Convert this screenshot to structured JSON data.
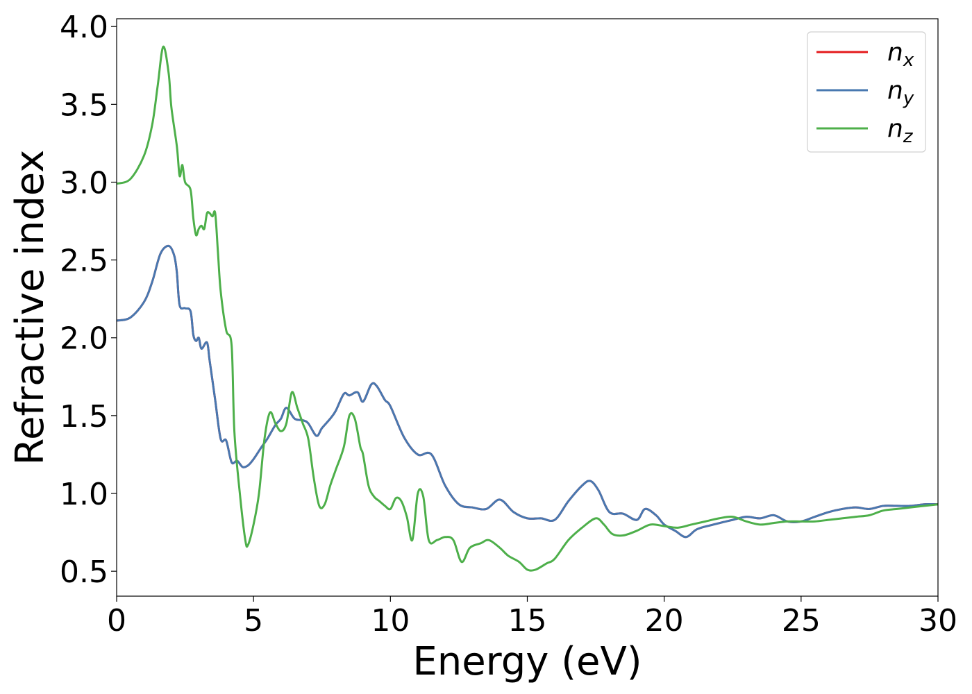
{
  "chart_data": {
    "type": "line",
    "title": "",
    "xlabel": "Energy (eV)",
    "ylabel": "Refractive index",
    "xlim": [
      0,
      30
    ],
    "ylim": [
      0.34,
      4.05
    ],
    "xticks": [
      0,
      5,
      10,
      15,
      20,
      25,
      30
    ],
    "xtick_labels": [
      "0",
      "5",
      "10",
      "15",
      "20",
      "25",
      "30"
    ],
    "yticks": [
      0.5,
      1.0,
      1.5,
      2.0,
      2.5,
      3.0,
      3.5,
      4.0
    ],
    "ytick_labels": [
      "0.5",
      "1.0",
      "1.5",
      "2.0",
      "2.5",
      "3.0",
      "3.5",
      "4.0"
    ],
    "grid": false,
    "legend_position": "top-right",
    "series": [
      {
        "name": "n",
        "subscript": "x",
        "color": "#e41a1c",
        "x": [
          0,
          0.5,
          1.0,
          1.3,
          1.6,
          1.9,
          2.1,
          2.2,
          2.3,
          2.5,
          2.7,
          2.8,
          2.9,
          3.0,
          3.1,
          3.3,
          3.4,
          3.6,
          3.8,
          4.0,
          4.2,
          4.4,
          4.6,
          4.8,
          5.0,
          5.3,
          5.5,
          5.8,
          6.0,
          6.2,
          6.5,
          6.8,
          7.0,
          7.3,
          7.5,
          7.8,
          8.0,
          8.3,
          8.5,
          8.8,
          9.0,
          9.3,
          9.5,
          9.8,
          10.0,
          10.5,
          11.0,
          11.5,
          12.0,
          12.5,
          13.0,
          13.5,
          14.0,
          14.5,
          15.0,
          15.5,
          16.0,
          16.5,
          17.0,
          17.3,
          17.6,
          18.0,
          18.5,
          19.0,
          19.3,
          19.7,
          20.0,
          20.4,
          20.8,
          21.2,
          21.8,
          22.5,
          23.0,
          23.5,
          24.0,
          24.5,
          25.0,
          25.5,
          26.0,
          26.5,
          27.0,
          27.5,
          28.0,
          28.5,
          29.0,
          29.5,
          30.0
        ],
        "values": [
          2.11,
          2.13,
          2.23,
          2.36,
          2.54,
          2.59,
          2.53,
          2.42,
          2.21,
          2.19,
          2.17,
          2.02,
          1.98,
          2.0,
          1.93,
          1.97,
          1.85,
          1.6,
          1.35,
          1.34,
          1.2,
          1.21,
          1.17,
          1.18,
          1.22,
          1.3,
          1.35,
          1.44,
          1.48,
          1.55,
          1.48,
          1.47,
          1.45,
          1.37,
          1.42,
          1.48,
          1.53,
          1.64,
          1.63,
          1.65,
          1.59,
          1.7,
          1.69,
          1.6,
          1.56,
          1.36,
          1.25,
          1.25,
          1.05,
          0.93,
          0.91,
          0.9,
          0.96,
          0.88,
          0.84,
          0.84,
          0.83,
          0.95,
          1.05,
          1.08,
          1.02,
          0.88,
          0.87,
          0.83,
          0.9,
          0.86,
          0.8,
          0.76,
          0.72,
          0.77,
          0.8,
          0.83,
          0.85,
          0.84,
          0.86,
          0.82,
          0.82,
          0.85,
          0.88,
          0.9,
          0.91,
          0.9,
          0.92,
          0.92,
          0.92,
          0.93,
          0.93
        ]
      },
      {
        "name": "n",
        "subscript": "y",
        "color": "#4878b0",
        "x": [
          0,
          0.5,
          1.0,
          1.3,
          1.6,
          1.9,
          2.1,
          2.2,
          2.3,
          2.5,
          2.7,
          2.8,
          2.9,
          3.0,
          3.1,
          3.3,
          3.4,
          3.6,
          3.8,
          4.0,
          4.2,
          4.4,
          4.6,
          4.8,
          5.0,
          5.3,
          5.5,
          5.8,
          6.0,
          6.2,
          6.5,
          6.8,
          7.0,
          7.3,
          7.5,
          7.8,
          8.0,
          8.3,
          8.5,
          8.8,
          9.0,
          9.3,
          9.5,
          9.8,
          10.0,
          10.5,
          11.0,
          11.5,
          12.0,
          12.5,
          13.0,
          13.5,
          14.0,
          14.5,
          15.0,
          15.5,
          16.0,
          16.5,
          17.0,
          17.3,
          17.6,
          18.0,
          18.5,
          19.0,
          19.3,
          19.7,
          20.0,
          20.4,
          20.8,
          21.2,
          21.8,
          22.5,
          23.0,
          23.5,
          24.0,
          24.5,
          25.0,
          25.5,
          26.0,
          26.5,
          27.0,
          27.5,
          28.0,
          28.5,
          29.0,
          29.5,
          30.0
        ],
        "values": [
          2.11,
          2.13,
          2.23,
          2.36,
          2.54,
          2.59,
          2.53,
          2.42,
          2.21,
          2.19,
          2.17,
          2.02,
          1.98,
          2.0,
          1.93,
          1.97,
          1.85,
          1.6,
          1.35,
          1.34,
          1.2,
          1.21,
          1.17,
          1.18,
          1.22,
          1.3,
          1.35,
          1.44,
          1.48,
          1.55,
          1.48,
          1.47,
          1.45,
          1.37,
          1.42,
          1.48,
          1.53,
          1.64,
          1.63,
          1.65,
          1.59,
          1.7,
          1.69,
          1.6,
          1.56,
          1.36,
          1.25,
          1.25,
          1.05,
          0.93,
          0.91,
          0.9,
          0.96,
          0.88,
          0.84,
          0.84,
          0.83,
          0.95,
          1.05,
          1.08,
          1.02,
          0.88,
          0.87,
          0.83,
          0.9,
          0.86,
          0.8,
          0.76,
          0.72,
          0.77,
          0.8,
          0.83,
          0.85,
          0.84,
          0.86,
          0.82,
          0.82,
          0.85,
          0.88,
          0.9,
          0.91,
          0.9,
          0.92,
          0.92,
          0.92,
          0.93,
          0.93
        ]
      },
      {
        "name": "n",
        "subscript": "z",
        "color": "#4daf4a",
        "x": [
          0,
          0.5,
          1.0,
          1.3,
          1.5,
          1.7,
          1.9,
          2.0,
          2.2,
          2.3,
          2.4,
          2.5,
          2.7,
          2.8,
          2.9,
          3.0,
          3.1,
          3.2,
          3.3,
          3.4,
          3.5,
          3.6,
          3.7,
          3.8,
          4.0,
          4.2,
          4.3,
          4.5,
          4.7,
          4.8,
          5.0,
          5.2,
          5.4,
          5.6,
          5.8,
          6.0,
          6.2,
          6.4,
          6.6,
          6.8,
          7.0,
          7.2,
          7.4,
          7.6,
          7.8,
          8.0,
          8.3,
          8.5,
          8.7,
          8.9,
          9.0,
          9.2,
          9.4,
          9.6,
          9.8,
          10.0,
          10.2,
          10.4,
          10.6,
          10.8,
          11.0,
          11.2,
          11.4,
          11.7,
          12.0,
          12.3,
          12.6,
          12.9,
          13.3,
          13.6,
          14.0,
          14.3,
          14.7,
          15.0,
          15.3,
          15.7,
          16.0,
          16.5,
          17.0,
          17.5,
          17.8,
          18.1,
          18.5,
          19.0,
          19.5,
          20.0,
          20.5,
          21.0,
          21.5,
          22.0,
          22.5,
          23.0,
          23.5,
          24.0,
          24.5,
          25.0,
          25.5,
          26.0,
          26.5,
          27.0,
          27.5,
          28.0,
          28.5,
          29.0,
          29.5,
          30.0
        ],
        "values": [
          2.99,
          3.02,
          3.17,
          3.37,
          3.62,
          3.87,
          3.7,
          3.48,
          3.23,
          3.04,
          3.11,
          3.0,
          2.95,
          2.77,
          2.66,
          2.7,
          2.72,
          2.7,
          2.8,
          2.8,
          2.78,
          2.8,
          2.55,
          2.3,
          2.05,
          1.95,
          1.4,
          1.0,
          0.7,
          0.67,
          0.8,
          1.0,
          1.35,
          1.52,
          1.45,
          1.4,
          1.45,
          1.65,
          1.55,
          1.45,
          1.35,
          1.1,
          0.92,
          0.93,
          1.05,
          1.15,
          1.3,
          1.5,
          1.48,
          1.3,
          1.25,
          1.05,
          0.98,
          0.95,
          0.92,
          0.9,
          0.97,
          0.95,
          0.85,
          0.7,
          1.0,
          0.98,
          0.7,
          0.7,
          0.72,
          0.7,
          0.56,
          0.65,
          0.68,
          0.7,
          0.65,
          0.6,
          0.56,
          0.51,
          0.51,
          0.55,
          0.58,
          0.7,
          0.78,
          0.84,
          0.8,
          0.74,
          0.73,
          0.76,
          0.8,
          0.79,
          0.78,
          0.8,
          0.82,
          0.84,
          0.85,
          0.82,
          0.8,
          0.81,
          0.82,
          0.82,
          0.82,
          0.83,
          0.84,
          0.85,
          0.86,
          0.89,
          0.9,
          0.91,
          0.92,
          0.93
        ]
      }
    ]
  }
}
